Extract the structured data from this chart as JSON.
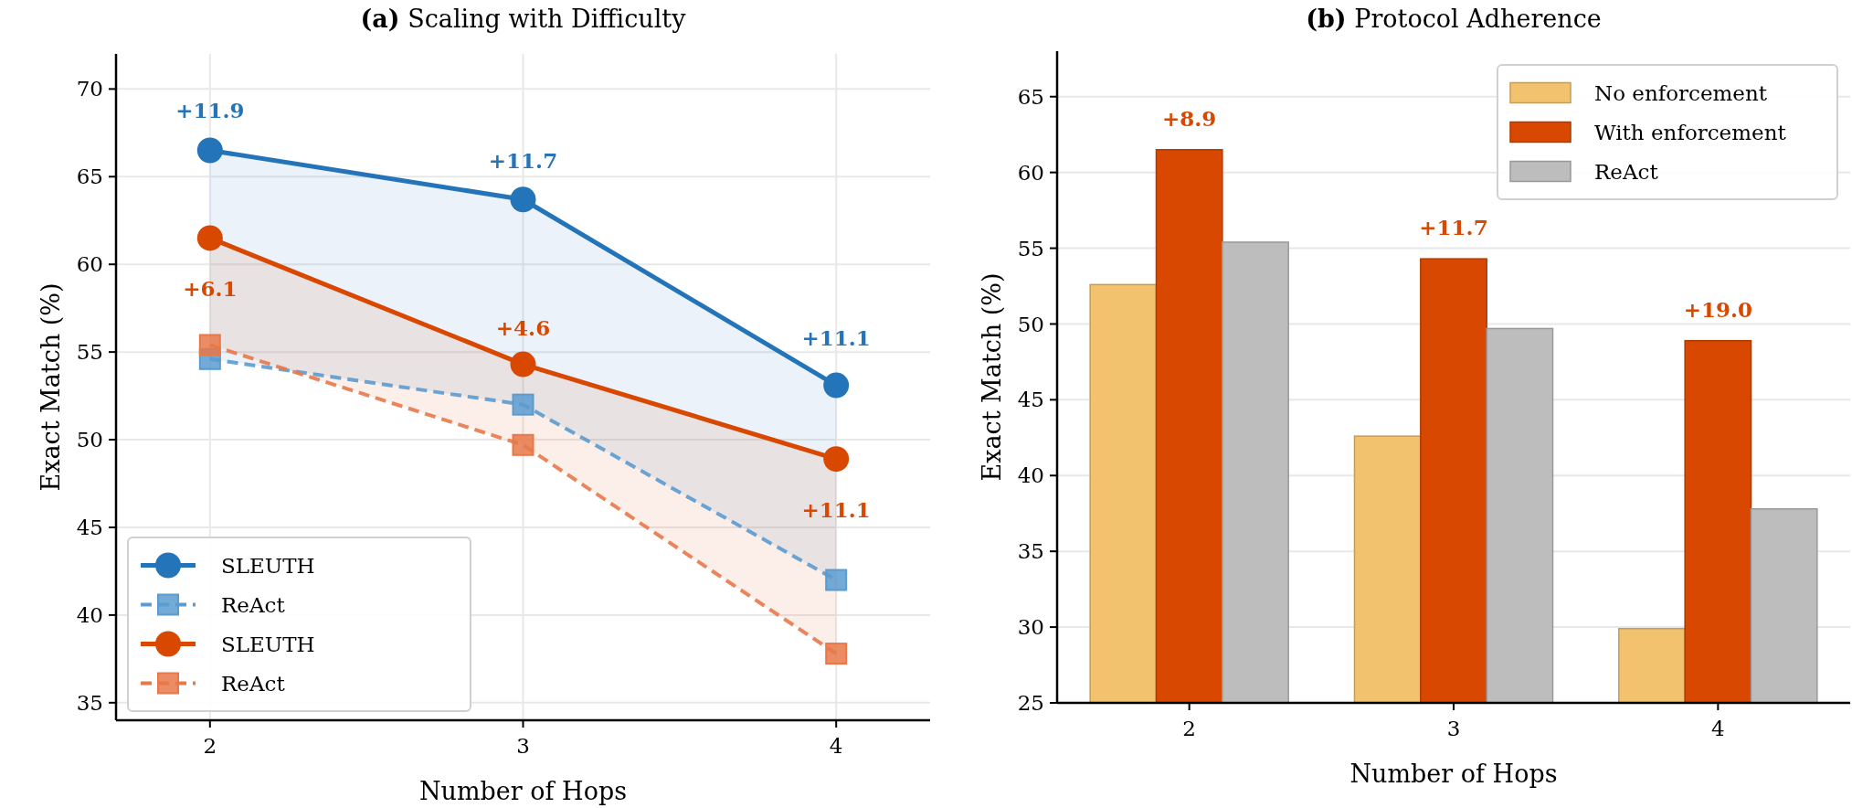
{
  "chart_data": [
    {
      "type": "line",
      "title": "(a) Scaling with Difficulty",
      "xlabel": "Number of Hops",
      "ylabel": "Exact Match (%)",
      "x": [
        2,
        3,
        4
      ],
      "xlim": [
        1.7,
        4.3
      ],
      "xticks": [
        2,
        3,
        4
      ],
      "ylim": [
        34,
        72
      ],
      "yticks": [
        35,
        40,
        45,
        50,
        55,
        60,
        65,
        70
      ],
      "grid": true,
      "legend": "bottom left",
      "series": [
        {
          "name": "SLEUTH",
          "color": "#2474b9",
          "values": [
            66.5,
            63.7,
            53.1
          ],
          "marker": "circle",
          "line_style": "solid",
          "lower": [
            54.6,
            52.0,
            42.0
          ],
          "upper": [
            66.5,
            63.7,
            53.1
          ]
        },
        {
          "name": "ReAct",
          "color": "#5b9bd0",
          "values": [
            54.6,
            52.0,
            42.0
          ],
          "marker": "square",
          "line_style": "dashed"
        },
        {
          "name": "SLEUTH",
          "color": "#d94801",
          "values": [
            61.5,
            54.3,
            48.9
          ],
          "marker": "circle",
          "line_style": "solid",
          "lower": [
            55.4,
            49.7,
            37.8
          ],
          "upper": [
            61.5,
            54.3,
            48.9
          ]
        },
        {
          "name": "ReAct",
          "color": "#e8784a",
          "values": [
            55.4,
            49.7,
            37.8
          ],
          "marker": "square",
          "line_style": "dashed"
        }
      ],
      "annotations": [
        "+11.9",
        "+11.7",
        "+11.1",
        "+6.1",
        "+4.6",
        "+11.1"
      ]
    },
    {
      "type": "bar",
      "title": "(b) Protocol Adherence",
      "xlabel": "Number of Hops",
      "ylabel": "Exact Match (%)",
      "categories": [
        "2",
        "3",
        "4"
      ],
      "ylim": [
        25,
        68
      ],
      "yticks": [
        25,
        30,
        35,
        40,
        45,
        50,
        55,
        60,
        65
      ],
      "grid": "y",
      "legend": "top right",
      "series": [
        {
          "name": "No enforcement",
          "color": "#f3c26f",
          "values": [
            52.6,
            42.6,
            29.9
          ]
        },
        {
          "name": "With enforcement",
          "color": "#d94801",
          "values": [
            61.5,
            54.3,
            48.9
          ]
        },
        {
          "name": "ReAct",
          "color": "#bdbdbd",
          "values": [
            55.4,
            49.7,
            37.8
          ]
        }
      ],
      "annotations": [
        "+8.9",
        "+11.7",
        "+19.0"
      ]
    }
  ]
}
